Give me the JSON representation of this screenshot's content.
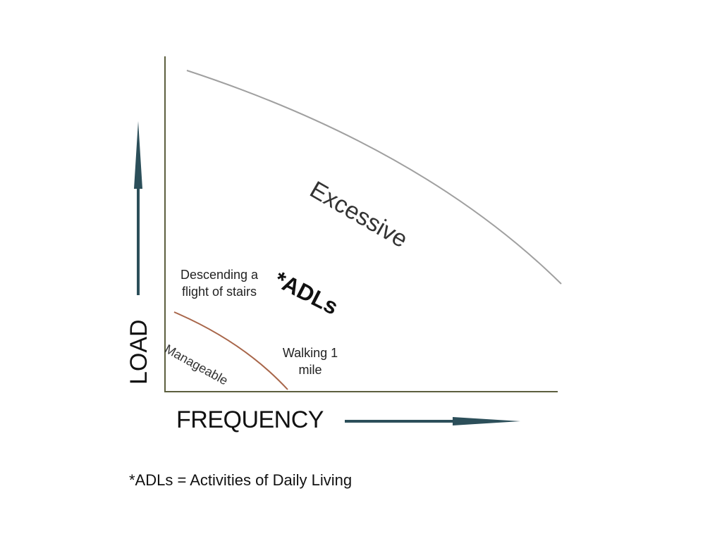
{
  "diagram": {
    "regions": {
      "excessive": "Excessive",
      "manageable": "Manageable"
    },
    "center_label": "*ADLs",
    "activities": {
      "stairs": "Descending a flight of stairs",
      "walking": "Walking 1 mile"
    },
    "axes": {
      "x_label": "FREQUENCY",
      "y_label": "LOAD"
    },
    "footnote": "*ADLs = Activities of Daily Living"
  },
  "colors": {
    "axis": "#5c5f3e",
    "arrow": "#2c4f5a",
    "excessive_curve": "#a0a0a0",
    "manageable_curve": "#a8664a"
  }
}
